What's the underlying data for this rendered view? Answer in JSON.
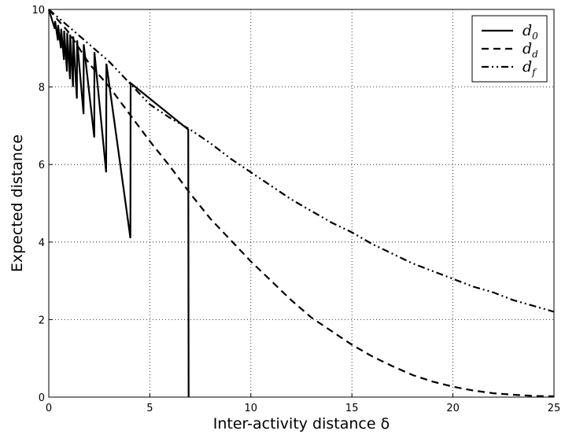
{
  "chart_data": {
    "type": "line",
    "xlabel": "Inter-activity distance δ",
    "ylabel": "Expected distance",
    "xlim": [
      0,
      25
    ],
    "ylim": [
      0,
      10
    ],
    "xticks": [
      "0",
      "5",
      "10",
      "15",
      "20",
      "25"
    ],
    "yticks": [
      "0",
      "2",
      "4",
      "6",
      "8",
      "10"
    ],
    "grid": true,
    "legend_position": "top-right",
    "series": [
      {
        "name": "d0",
        "name_base": "d",
        "name_sub": "0",
        "style": "solid",
        "points": [
          [
            0,
            10
          ],
          [
            0.3,
            9.5
          ],
          [
            0.31,
            9.7
          ],
          [
            0.45,
            9.2
          ],
          [
            0.46,
            9.6
          ],
          [
            0.6,
            9.0
          ],
          [
            0.61,
            9.5
          ],
          [
            0.75,
            8.7
          ],
          [
            0.76,
            9.45
          ],
          [
            0.9,
            8.4
          ],
          [
            0.91,
            9.4
          ],
          [
            1.05,
            8.2
          ],
          [
            1.06,
            9.35
          ],
          [
            1.2,
            8.0
          ],
          [
            1.21,
            9.3
          ],
          [
            1.39,
            7.7
          ],
          [
            1.4,
            9.2
          ],
          [
            1.72,
            7.3
          ],
          [
            1.73,
            9.1
          ],
          [
            2.25,
            6.7
          ],
          [
            2.26,
            8.9
          ],
          [
            2.84,
            5.8
          ],
          [
            2.85,
            8.6
          ],
          [
            4.04,
            4.1
          ],
          [
            4.05,
            8.1
          ],
          [
            6.9,
            6.9
          ],
          [
            6.92,
            0
          ]
        ]
      },
      {
        "name": "dd",
        "name_base": "d",
        "name_sub": "d",
        "style": "dashed",
        "points": [
          [
            0,
            10
          ],
          [
            1,
            9.4
          ],
          [
            2,
            8.6
          ],
          [
            3,
            8.0
          ],
          [
            4,
            7.3
          ],
          [
            5,
            6.6
          ],
          [
            6,
            5.95
          ],
          [
            7,
            5.25
          ],
          [
            8,
            4.6
          ],
          [
            9,
            4.05
          ],
          [
            10,
            3.5
          ],
          [
            11,
            3.0
          ],
          [
            12,
            2.5
          ],
          [
            13,
            2.05
          ],
          [
            14,
            1.7
          ],
          [
            15,
            1.35
          ],
          [
            16,
            1.05
          ],
          [
            17,
            0.8
          ],
          [
            18,
            0.57
          ],
          [
            19,
            0.4
          ],
          [
            20,
            0.27
          ],
          [
            21,
            0.17
          ],
          [
            22,
            0.1
          ],
          [
            23,
            0.06
          ],
          [
            24,
            0.03
          ],
          [
            25,
            0.02
          ]
        ]
      },
      {
        "name": "df",
        "name_base": "d",
        "name_sub": "f",
        "style": "dashdot",
        "points": [
          [
            0,
            10
          ],
          [
            1,
            9.55
          ],
          [
            2,
            9.1
          ],
          [
            3,
            8.65
          ],
          [
            4,
            8.1
          ],
          [
            5,
            7.55
          ],
          [
            6,
            7.2
          ],
          [
            7,
            6.9
          ],
          [
            8,
            6.55
          ],
          [
            9,
            6.15
          ],
          [
            10,
            5.8
          ],
          [
            11,
            5.45
          ],
          [
            12,
            5.1
          ],
          [
            13,
            4.8
          ],
          [
            14,
            4.5
          ],
          [
            15,
            4.25
          ],
          [
            16,
            3.95
          ],
          [
            17,
            3.7
          ],
          [
            18,
            3.45
          ],
          [
            19,
            3.25
          ],
          [
            20,
            3.05
          ],
          [
            21,
            2.85
          ],
          [
            22,
            2.7
          ],
          [
            23,
            2.5
          ],
          [
            24,
            2.35
          ],
          [
            25,
            2.2
          ]
        ]
      }
    ]
  }
}
